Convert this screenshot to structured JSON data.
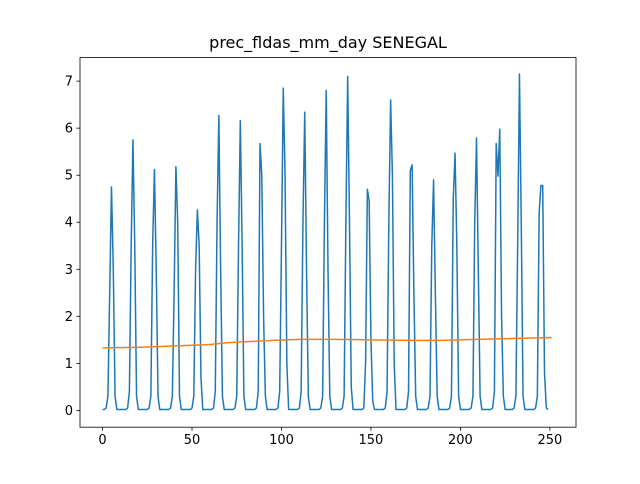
{
  "chart_data": {
    "type": "line",
    "title": "prec_fldas_mm_day SENEGAL",
    "xlabel": "",
    "ylabel": "",
    "xlim": [
      -12.6,
      264.6
    ],
    "ylim": [
      -0.357,
      7.5
    ],
    "xticks": [
      0,
      50,
      100,
      150,
      200,
      250
    ],
    "yticks": [
      0,
      1,
      2,
      3,
      4,
      5,
      6,
      7
    ],
    "grid": false,
    "legend": "none",
    "colors": [
      "#1f77b4",
      "#ff7f0e"
    ],
    "series": [
      {
        "values": [
          0.02,
          0.02,
          0.05,
          0.3,
          2.5,
          4.75,
          3.0,
          0.3,
          0.02,
          0.02,
          0.02,
          0.02,
          0.02,
          0.02,
          0.05,
          0.4,
          3.5,
          5.75,
          3.5,
          0.3,
          0.02,
          0.02,
          0.02,
          0.02,
          0.02,
          0.02,
          0.05,
          0.3,
          3.5,
          5.12,
          3.0,
          0.3,
          0.02,
          0.02,
          0.02,
          0.02,
          0.02,
          0.02,
          0.05,
          0.3,
          2.5,
          5.18,
          4.0,
          0.3,
          0.02,
          0.02,
          0.02,
          0.02,
          0.02,
          0.02,
          0.05,
          0.3,
          3.0,
          4.26,
          3.5,
          0.7,
          0.02,
          0.02,
          0.02,
          0.02,
          0.02,
          0.02,
          0.05,
          0.4,
          4.0,
          6.27,
          3.0,
          0.3,
          0.02,
          0.02,
          0.02,
          0.02,
          0.02,
          0.02,
          0.05,
          0.3,
          3.5,
          6.16,
          3.5,
          0.3,
          0.02,
          0.02,
          0.02,
          0.02,
          0.02,
          0.02,
          0.05,
          0.4,
          5.67,
          5.0,
          2.0,
          0.3,
          0.02,
          0.02,
          0.02,
          0.02,
          0.02,
          0.02,
          0.05,
          0.4,
          3.5,
          6.85,
          5.0,
          1.0,
          0.02,
          0.02,
          0.02,
          0.02,
          0.02,
          0.02,
          0.05,
          0.4,
          4.0,
          6.34,
          3.0,
          0.3,
          0.02,
          0.02,
          0.02,
          0.02,
          0.02,
          0.02,
          0.05,
          0.3,
          4.0,
          6.8,
          3.0,
          0.3,
          0.02,
          0.02,
          0.02,
          0.02,
          0.02,
          0.02,
          0.05,
          0.3,
          4.0,
          7.1,
          4.0,
          0.5,
          0.02,
          0.02,
          0.02,
          0.02,
          0.02,
          0.02,
          0.05,
          1.0,
          4.7,
          4.45,
          1.5,
          0.2,
          0.02,
          0.02,
          0.02,
          0.02,
          0.02,
          0.02,
          0.05,
          0.4,
          4.0,
          6.6,
          5.0,
          1.0,
          0.02,
          0.02,
          0.02,
          0.02,
          0.02,
          0.02,
          0.05,
          0.4,
          5.1,
          5.22,
          2.5,
          0.3,
          0.02,
          0.02,
          0.02,
          0.02,
          0.02,
          0.02,
          0.05,
          0.3,
          3.5,
          4.9,
          2.5,
          0.3,
          0.02,
          0.02,
          0.02,
          0.02,
          0.02,
          0.02,
          0.05,
          0.3,
          4.5,
          5.47,
          3.5,
          0.3,
          0.02,
          0.02,
          0.02,
          0.02,
          0.02,
          0.02,
          0.05,
          0.3,
          4.0,
          5.79,
          3.0,
          0.3,
          0.02,
          0.02,
          0.02,
          0.02,
          0.02,
          0.02,
          0.05,
          0.4,
          5.67,
          4.98,
          5.98,
          2.0,
          0.3,
          0.02,
          0.02,
          0.02,
          0.02,
          0.02,
          0.05,
          0.3,
          3.5,
          7.15,
          4.0,
          0.3,
          0.02,
          0.02,
          0.02,
          0.02,
          0.02,
          0.02,
          0.05,
          0.3,
          4.2,
          4.78,
          4.78,
          0.8,
          0.05,
          0.02
        ]
      },
      {
        "anchors": [
          [
            0,
            1.33
          ],
          [
            20,
            1.34
          ],
          [
            40,
            1.37
          ],
          [
            60,
            1.4
          ],
          [
            70,
            1.44
          ],
          [
            90,
            1.48
          ],
          [
            110,
            1.51
          ],
          [
            130,
            1.51
          ],
          [
            150,
            1.5
          ],
          [
            170,
            1.49
          ],
          [
            190,
            1.49
          ],
          [
            210,
            1.51
          ],
          [
            230,
            1.53
          ],
          [
            251,
            1.55
          ]
        ],
        "length": 252
      }
    ]
  }
}
